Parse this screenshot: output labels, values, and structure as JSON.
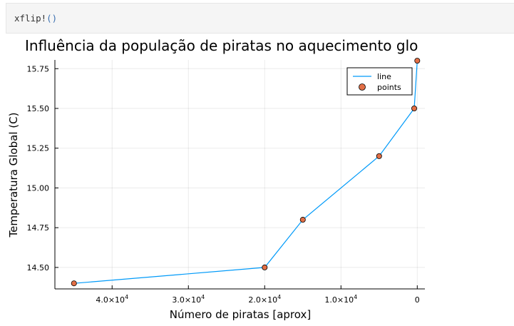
{
  "code_cell": {
    "function_name": "xflip!",
    "parens": "()"
  },
  "chart_data": {
    "type": "line",
    "title": "Influência da população de piratas no aquecimento glo",
    "xlabel": "Número de piratas [aprox]",
    "ylabel": "Temperatura Global (C)",
    "x_flipped": true,
    "xlim": [
      -1000,
      47500
    ],
    "ylim": [
      14.365,
      15.805
    ],
    "x_ticks": [
      {
        "value": 40000,
        "mantissa": "4.0",
        "exp": "4",
        "base": "×10"
      },
      {
        "value": 30000,
        "mantissa": "3.0",
        "exp": "4",
        "base": "×10"
      },
      {
        "value": 20000,
        "mantissa": "2.0",
        "exp": "4",
        "base": "×10"
      },
      {
        "value": 10000,
        "mantissa": "1.0",
        "exp": "4",
        "base": "×10"
      },
      {
        "value": 0,
        "mantissa": "0",
        "exp": "",
        "base": ""
      }
    ],
    "y_ticks": [
      {
        "value": 14.5,
        "label": "14.50"
      },
      {
        "value": 14.75,
        "label": "14.75"
      },
      {
        "value": 15.0,
        "label": "15.00"
      },
      {
        "value": 15.25,
        "label": "15.25"
      },
      {
        "value": 15.5,
        "label": "15.50"
      },
      {
        "value": 15.75,
        "label": "15.75"
      }
    ],
    "grid": true,
    "legend_position": "top-right",
    "series": [
      {
        "name": "line",
        "kind": "line",
        "color": "#009af9",
        "x": [
          45000,
          20000,
          15000,
          5000,
          400,
          0
        ],
        "y": [
          14.4,
          14.5,
          14.8,
          15.2,
          15.5,
          15.8
        ]
      },
      {
        "name": "points",
        "kind": "scatter",
        "color": "#e26f46",
        "x": [
          45000,
          20000,
          15000,
          5000,
          400,
          0
        ],
        "y": [
          14.4,
          14.5,
          14.8,
          15.2,
          15.5,
          15.8
        ]
      }
    ]
  }
}
